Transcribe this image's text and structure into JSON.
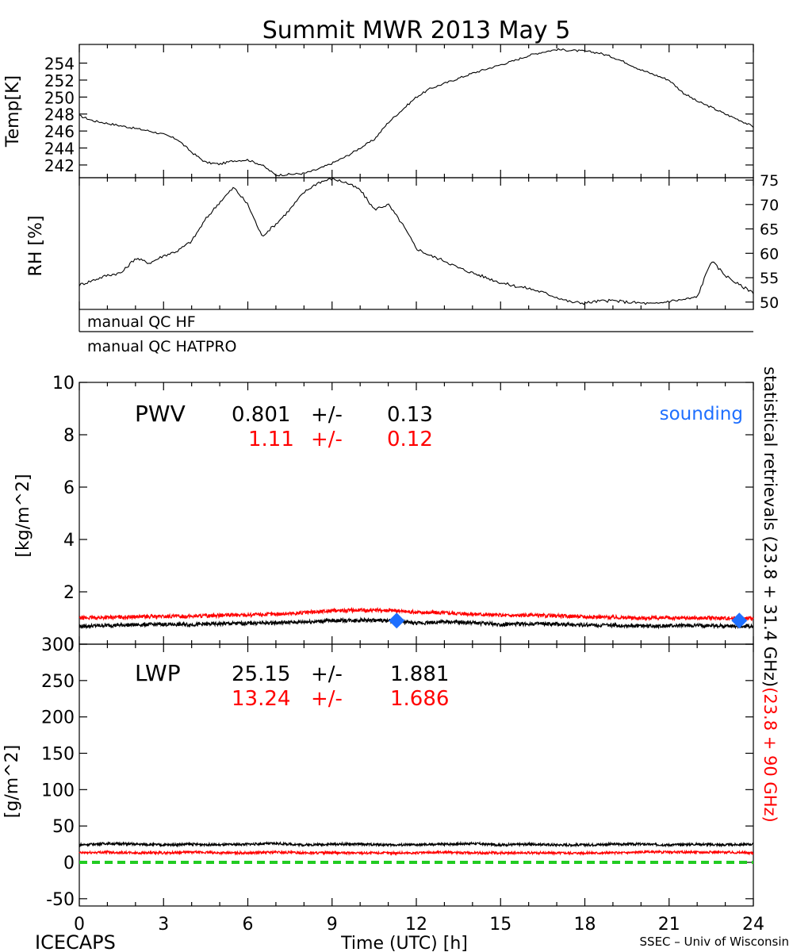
{
  "title": "Summit MWR 2013 May  5",
  "footer": {
    "left": "ICECAPS",
    "center": "Time (UTC) [h]",
    "right": "SSEC – Univ of Wisconsin"
  },
  "colors": {
    "black": "#000000",
    "red": "#ff0000",
    "blue": "#1e6fff",
    "green": "#22cc22"
  },
  "chart_data": [
    {
      "type": "line",
      "panel": "temperature",
      "ylabel": "Temp[K]",
      "ylim": [
        240.5,
        256.2
      ],
      "yticks": [
        242,
        244,
        246,
        248,
        250,
        252,
        254
      ],
      "xlim": [
        0,
        24
      ],
      "series": [
        {
          "x": [
            0,
            0.5,
            1,
            1.5,
            2,
            2.5,
            3,
            3.5,
            4,
            4.5,
            5,
            5.5,
            6,
            6.5,
            7,
            7.5,
            8,
            8.5,
            9,
            9.5,
            10,
            10.5,
            11,
            11.5,
            12,
            12.5,
            13,
            13.5,
            14,
            14.5,
            15,
            15.5,
            16,
            16.5,
            17,
            17.5,
            18,
            18.5,
            19,
            19.5,
            20,
            20.5,
            21,
            21.5,
            22,
            22.5,
            23,
            23.5,
            24
          ],
          "values": [
            247.8,
            247.2,
            246.9,
            246.6,
            246.3,
            246.0,
            245.6,
            245.0,
            243.5,
            242.3,
            242.1,
            242.5,
            242.6,
            242.0,
            240.8,
            240.9,
            241.0,
            241.5,
            242.2,
            243.0,
            244.0,
            245.0,
            247.0,
            248.5,
            250.0,
            251.0,
            251.6,
            252.2,
            252.8,
            253.3,
            253.8,
            254.3,
            254.9,
            255.3,
            255.6,
            255.5,
            255.4,
            255.2,
            254.7,
            254.0,
            253.2,
            252.6,
            252.0,
            250.5,
            249.5,
            248.8,
            248.0,
            247.3,
            246.5
          ]
        }
      ]
    },
    {
      "type": "line",
      "panel": "relative-humidity",
      "ylabel": "RH [%]",
      "ylim": [
        48.5,
        75.5
      ],
      "yticks": [
        50,
        55,
        60,
        65,
        70,
        75
      ],
      "xlim": [
        0,
        24
      ],
      "series": [
        {
          "x": [
            0,
            0.5,
            1,
            1.5,
            2,
            2.5,
            3,
            3.5,
            4,
            4.5,
            5,
            5.5,
            6,
            6.5,
            7,
            7.5,
            8,
            8.5,
            9,
            9.5,
            10,
            10.5,
            11,
            11.5,
            12,
            12.5,
            13,
            13.5,
            14,
            14.5,
            15,
            15.5,
            16,
            16.5,
            17,
            17.5,
            18,
            18.5,
            19,
            19.5,
            20,
            20.5,
            21,
            21.5,
            22,
            22.5,
            23,
            23.5,
            24
          ],
          "values": [
            53.5,
            54.5,
            55.5,
            56.0,
            59.0,
            58.0,
            59.5,
            60.5,
            62.5,
            67.0,
            70.5,
            73.5,
            70.0,
            63.5,
            66.0,
            69.0,
            72.5,
            74.5,
            75.3,
            74.5,
            73.0,
            69.0,
            70.0,
            66.0,
            61.0,
            59.5,
            58.5,
            57.0,
            56.0,
            55.0,
            54.0,
            53.3,
            52.8,
            52.0,
            51.0,
            50.0,
            49.8,
            50.2,
            50.3,
            50.0,
            49.8,
            49.6,
            50.2,
            50.5,
            51.0,
            58.5,
            55.5,
            53.5,
            52.0
          ]
        }
      ]
    },
    {
      "type": "line",
      "panel": "pwv",
      "ylabel": "[kg/m^2]",
      "ylim": [
        0,
        10
      ],
      "yticks": [
        0,
        2,
        4,
        6,
        8,
        10
      ],
      "xlim": [
        0,
        24
      ],
      "series": [
        {
          "color": "black",
          "x": [
            0,
            1,
            2,
            3,
            4,
            5,
            6,
            7,
            8,
            9,
            10,
            11,
            12,
            13,
            14,
            15,
            16,
            17,
            18,
            19,
            20,
            21,
            22,
            23,
            24
          ],
          "values": [
            0.68,
            0.72,
            0.74,
            0.76,
            0.75,
            0.78,
            0.8,
            0.82,
            0.85,
            0.9,
            0.92,
            0.9,
            0.8,
            0.85,
            0.82,
            0.75,
            0.78,
            0.76,
            0.74,
            0.72,
            0.7,
            0.7,
            0.71,
            0.7,
            0.68
          ]
        },
        {
          "color": "red",
          "x": [
            0,
            1,
            2,
            3,
            4,
            5,
            6,
            7,
            8,
            9,
            10,
            11,
            12,
            13,
            14,
            15,
            16,
            17,
            18,
            19,
            20,
            21,
            22,
            23,
            24
          ],
          "values": [
            1.0,
            1.02,
            1.05,
            1.06,
            1.07,
            1.1,
            1.12,
            1.15,
            1.2,
            1.28,
            1.3,
            1.3,
            1.22,
            1.2,
            1.16,
            1.1,
            1.1,
            1.08,
            1.05,
            1.03,
            1.0,
            1.0,
            1.0,
            1.0,
            0.98
          ]
        },
        {
          "name": "sounding",
          "type": "scatter",
          "color": "blue",
          "x": [
            11.3,
            23.5
          ],
          "values": [
            0.9,
            0.9
          ]
        }
      ]
    },
    {
      "type": "line",
      "panel": "lwp",
      "ylabel": "[g/m^2]",
      "ylim": [
        -60,
        300
      ],
      "yticks": [
        -50,
        0,
        50,
        100,
        150,
        200,
        250,
        300
      ],
      "xlim": [
        0,
        24
      ],
      "xticks": [
        0,
        3,
        6,
        9,
        12,
        15,
        18,
        21,
        24
      ],
      "series": [
        {
          "color": "black",
          "x": [
            0,
            1,
            2,
            3,
            4,
            5,
            6,
            7,
            8,
            9,
            10,
            11,
            12,
            13,
            14,
            15,
            16,
            17,
            18,
            19,
            20,
            21,
            22,
            23,
            24
          ],
          "values": [
            24,
            26,
            25,
            24,
            25,
            24,
            25,
            26,
            24,
            25,
            25,
            24,
            24,
            25,
            26,
            24,
            25,
            24,
            24,
            25,
            25,
            24,
            25,
            24,
            25
          ]
        },
        {
          "color": "red",
          "x": [
            0,
            1,
            2,
            3,
            4,
            5,
            6,
            7,
            8,
            9,
            10,
            11,
            12,
            13,
            14,
            15,
            16,
            17,
            18,
            19,
            20,
            21,
            22,
            23,
            24
          ],
          "values": [
            13,
            14,
            13,
            13,
            14,
            13,
            13,
            14,
            13,
            13,
            13,
            13,
            13,
            14,
            13,
            13,
            13,
            13,
            13,
            13,
            14,
            14,
            14,
            14,
            13
          ]
        },
        {
          "color": "green",
          "style": "dashed",
          "x": [
            0,
            24
          ],
          "values": [
            0,
            0
          ]
        }
      ]
    }
  ],
  "qc": {
    "hf": "manual QC HF",
    "hatpro": "manual QC HATPRO"
  },
  "pwv_stats": {
    "label": "PWV",
    "black_mean": "0.801",
    "black_pm": "+/-",
    "black_sd": "0.13",
    "red_mean": "1.11",
    "red_pm": "+/-",
    "red_sd": "0.12",
    "sounding": "sounding"
  },
  "lwp_stats": {
    "label": "LWP",
    "black_mean": "25.15",
    "black_pm": "+/-",
    "black_sd": "1.881",
    "red_mean": "13.24",
    "red_pm": "+/-",
    "red_sd": "1.686"
  },
  "right_label": {
    "black": "statistical retrievals (23.8 + 31.4 GHz)",
    "red": "(23.8 + 90 GHz)"
  }
}
